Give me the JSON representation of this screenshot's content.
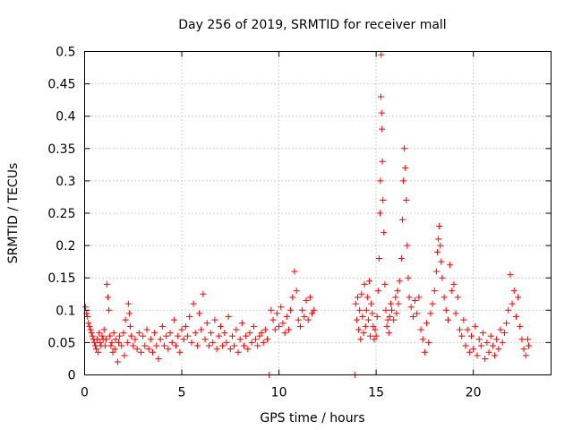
{
  "chart_data": {
    "type": "scatter",
    "title": "Day 256 of 2019, SRMTID for receiver mall",
    "xlabel": "GPS time / hours",
    "ylabel": "SRMTID / TECUs",
    "xlim": [
      0,
      24
    ],
    "ylim": [
      0,
      0.5
    ],
    "x_ticks": [
      "0",
      "5",
      "10",
      "15",
      "20"
    ],
    "y_ticks": [
      "0",
      "0.05",
      "0.1",
      "0.15",
      "0.2",
      "0.25",
      "0.3",
      "0.35",
      "0.4",
      "0.45",
      "0.5"
    ],
    "grid": true,
    "marker": "+",
    "color": "#ff0000",
    "series": [
      {
        "name": "SRMTID",
        "points": [
          [
            0.05,
            0.105
          ],
          [
            0.1,
            0.095
          ],
          [
            0.15,
            0.09
          ],
          [
            0.2,
            0.08
          ],
          [
            0.25,
            0.075
          ],
          [
            0.3,
            0.07
          ],
          [
            0.35,
            0.065
          ],
          [
            0.4,
            0.06
          ],
          [
            0.45,
            0.055
          ],
          [
            0.5,
            0.05
          ],
          [
            0.55,
            0.045
          ],
          [
            0.6,
            0.04
          ],
          [
            0.65,
            0.055
          ],
          [
            0.7,
            0.035
          ],
          [
            0.75,
            0.065
          ],
          [
            0.8,
            0.05
          ],
          [
            0.85,
            0.045
          ],
          [
            0.9,
            0.06
          ],
          [
            0.95,
            0.055
          ],
          [
            1.0,
            0.07
          ],
          [
            1.05,
            0.045
          ],
          [
            1.1,
            0.055
          ],
          [
            1.15,
            0.14
          ],
          [
            1.2,
            0.12
          ],
          [
            1.25,
            0.1
          ],
          [
            1.3,
            0.06
          ],
          [
            1.35,
            0.045
          ],
          [
            1.4,
            0.05
          ],
          [
            1.45,
            0.035
          ],
          [
            1.5,
            0.065
          ],
          [
            1.55,
            0.04
          ],
          [
            1.6,
            0.055
          ],
          [
            1.7,
            0.02
          ],
          [
            1.75,
            0.05
          ],
          [
            1.8,
            0.06
          ],
          [
            1.9,
            0.045
          ],
          [
            2.0,
            0.065
          ],
          [
            2.05,
            0.03
          ],
          [
            2.1,
            0.085
          ],
          [
            2.2,
            0.05
          ],
          [
            2.25,
            0.11
          ],
          [
            2.3,
            0.095
          ],
          [
            2.35,
            0.075
          ],
          [
            2.4,
            0.06
          ],
          [
            2.5,
            0.045
          ],
          [
            2.6,
            0.055
          ],
          [
            2.7,
            0.04
          ],
          [
            2.8,
            0.065
          ],
          [
            2.9,
            0.035
          ],
          [
            3.0,
            0.06
          ],
          [
            3.1,
            0.045
          ],
          [
            3.2,
            0.07
          ],
          [
            3.3,
            0.04
          ],
          [
            3.4,
            0.055
          ],
          [
            3.5,
            0.035
          ],
          [
            3.6,
            0.065
          ],
          [
            3.7,
            0.045
          ],
          [
            3.8,
            0.025
          ],
          [
            3.9,
            0.055
          ],
          [
            4.0,
            0.075
          ],
          [
            4.1,
            0.045
          ],
          [
            4.2,
            0.06
          ],
          [
            4.3,
            0.04
          ],
          [
            4.4,
            0.065
          ],
          [
            4.5,
            0.05
          ],
          [
            4.6,
            0.085
          ],
          [
            4.7,
            0.045
          ],
          [
            4.8,
            0.06
          ],
          [
            4.9,
            0.035
          ],
          [
            5.0,
            0.07
          ],
          [
            5.1,
            0.055
          ],
          [
            5.2,
            0.075
          ],
          [
            5.3,
            0.06
          ],
          [
            5.4,
            0.09
          ],
          [
            5.5,
            0.05
          ],
          [
            5.6,
            0.11
          ],
          [
            5.7,
            0.065
          ],
          [
            5.8,
            0.045
          ],
          [
            5.9,
            0.095
          ],
          [
            6.0,
            0.07
          ],
          [
            6.1,
            0.125
          ],
          [
            6.2,
            0.055
          ],
          [
            6.3,
            0.08
          ],
          [
            6.4,
            0.045
          ],
          [
            6.5,
            0.065
          ],
          [
            6.6,
            0.05
          ],
          [
            6.7,
            0.085
          ],
          [
            6.8,
            0.04
          ],
          [
            6.9,
            0.06
          ],
          [
            7.0,
            0.075
          ],
          [
            7.1,
            0.045
          ],
          [
            7.2,
            0.065
          ],
          [
            7.3,
            0.05
          ],
          [
            7.4,
            0.09
          ],
          [
            7.5,
            0.04
          ],
          [
            7.6,
            0.06
          ],
          [
            7.7,
            0.045
          ],
          [
            7.8,
            0.07
          ],
          [
            7.9,
            0.035
          ],
          [
            8.0,
            0.055
          ],
          [
            8.1,
            0.08
          ],
          [
            8.2,
            0.045
          ],
          [
            8.3,
            0.06
          ],
          [
            8.4,
            0.04
          ],
          [
            8.5,
            0.065
          ],
          [
            8.6,
            0.05
          ],
          [
            8.7,
            0.075
          ],
          [
            8.8,
            0.055
          ],
          [
            8.9,
            0.045
          ],
          [
            9.0,
            0.06
          ],
          [
            9.1,
            0.065
          ],
          [
            9.2,
            0.05
          ],
          [
            9.3,
            0.07
          ],
          [
            9.4,
            0.055
          ],
          [
            9.5,
            0.0
          ],
          [
            9.6,
            0.1
          ],
          [
            9.7,
            0.085
          ],
          [
            9.8,
            0.07
          ],
          [
            9.9,
            0.095
          ],
          [
            10.0,
            0.075
          ],
          [
            10.1,
            0.105
          ],
          [
            10.2,
            0.08
          ],
          [
            10.3,
            0.065
          ],
          [
            10.4,
            0.09
          ],
          [
            10.5,
            0.07
          ],
          [
            10.6,
            0.1
          ],
          [
            10.7,
            0.12
          ],
          [
            10.8,
            0.16
          ],
          [
            10.9,
            0.13
          ],
          [
            11.0,
            0.085
          ],
          [
            11.1,
            0.075
          ],
          [
            11.2,
            0.1
          ],
          [
            11.3,
            0.09
          ],
          [
            11.4,
            0.115
          ],
          [
            11.5,
            0.085
          ],
          [
            11.6,
            0.12
          ],
          [
            11.7,
            0.095
          ],
          [
            11.8,
            0.1
          ],
          [
            13.9,
            0.0
          ],
          [
            13.95,
            0.11
          ],
          [
            14.0,
            0.085
          ],
          [
            14.05,
            0.12
          ],
          [
            14.1,
            0.07
          ],
          [
            14.15,
            0.1
          ],
          [
            14.2,
            0.055
          ],
          [
            14.25,
            0.125
          ],
          [
            14.3,
            0.09
          ],
          [
            14.35,
            0.065
          ],
          [
            14.4,
            0.14
          ],
          [
            14.45,
            0.075
          ],
          [
            14.5,
            0.1
          ],
          [
            14.55,
            0.12
          ],
          [
            14.6,
            0.085
          ],
          [
            14.65,
            0.145
          ],
          [
            14.7,
            0.06
          ],
          [
            14.75,
            0.11
          ],
          [
            14.8,
            0.095
          ],
          [
            14.85,
            0.075
          ],
          [
            14.9,
            0.055
          ],
          [
            14.95,
            0.07
          ],
          [
            15.0,
            0.06
          ],
          [
            15.05,
            0.09
          ],
          [
            15.1,
            0.13
          ],
          [
            15.15,
            0.18
          ],
          [
            15.2,
            0.25
          ],
          [
            15.22,
            0.3
          ],
          [
            15.24,
            0.43
          ],
          [
            15.26,
            0.495
          ],
          [
            15.28,
            0.405
          ],
          [
            15.3,
            0.38
          ],
          [
            15.32,
            0.33
          ],
          [
            15.35,
            0.27
          ],
          [
            15.4,
            0.22
          ],
          [
            15.45,
            0.14
          ],
          [
            15.5,
            0.1
          ],
          [
            15.55,
            0.075
          ],
          [
            15.6,
            0.085
          ],
          [
            15.65,
            0.065
          ],
          [
            15.7,
            0.09
          ],
          [
            15.75,
            0.11
          ],
          [
            15.8,
            0.1
          ],
          [
            15.9,
            0.085
          ],
          [
            16.0,
            0.12
          ],
          [
            16.05,
            0.095
          ],
          [
            16.1,
            0.13
          ],
          [
            16.15,
            0.11
          ],
          [
            16.2,
            0.145
          ],
          [
            16.3,
            0.18
          ],
          [
            16.35,
            0.24
          ],
          [
            16.4,
            0.3
          ],
          [
            16.45,
            0.35
          ],
          [
            16.5,
            0.32
          ],
          [
            16.55,
            0.27
          ],
          [
            16.6,
            0.2
          ],
          [
            16.65,
            0.15
          ],
          [
            16.7,
            0.12
          ],
          [
            16.8,
            0.105
          ],
          [
            16.9,
            0.09
          ],
          [
            17.0,
            0.115
          ],
          [
            17.1,
            0.095
          ],
          [
            17.2,
            0.12
          ],
          [
            17.3,
            0.07
          ],
          [
            17.4,
            0.055
          ],
          [
            17.5,
            0.035
          ],
          [
            17.6,
            0.08
          ],
          [
            17.7,
            0.05
          ],
          [
            17.8,
            0.095
          ],
          [
            17.9,
            0.11
          ],
          [
            18.0,
            0.13
          ],
          [
            18.1,
            0.16
          ],
          [
            18.15,
            0.19
          ],
          [
            18.2,
            0.21
          ],
          [
            18.25,
            0.23
          ],
          [
            18.3,
            0.2
          ],
          [
            18.35,
            0.175
          ],
          [
            18.4,
            0.15
          ],
          [
            18.5,
            0.12
          ],
          [
            18.6,
            0.1
          ],
          [
            18.7,
            0.085
          ],
          [
            18.8,
            0.17
          ],
          [
            18.9,
            0.13
          ],
          [
            19.0,
            0.14
          ],
          [
            19.1,
            0.095
          ],
          [
            19.2,
            0.12
          ],
          [
            19.3,
            0.07
          ],
          [
            19.4,
            0.06
          ],
          [
            19.5,
            0.085
          ],
          [
            19.6,
            0.045
          ],
          [
            19.7,
            0.07
          ],
          [
            19.8,
            0.035
          ],
          [
            19.9,
            0.06
          ],
          [
            20.0,
            0.04
          ],
          [
            20.1,
            0.075
          ],
          [
            20.2,
            0.03
          ],
          [
            20.3,
            0.055
          ],
          [
            20.4,
            0.045
          ],
          [
            20.5,
            0.065
          ],
          [
            20.6,
            0.025
          ],
          [
            20.7,
            0.05
          ],
          [
            20.8,
            0.035
          ],
          [
            20.9,
            0.06
          ],
          [
            21.0,
            0.045
          ],
          [
            21.1,
            0.03
          ],
          [
            21.2,
            0.055
          ],
          [
            21.3,
            0.04
          ],
          [
            21.4,
            0.07
          ],
          [
            21.5,
            0.05
          ],
          [
            21.6,
            0.065
          ],
          [
            21.7,
            0.08
          ],
          [
            21.8,
            0.1
          ],
          [
            21.9,
            0.155
          ],
          [
            22.0,
            0.11
          ],
          [
            22.1,
            0.13
          ],
          [
            22.2,
            0.09
          ],
          [
            22.3,
            0.12
          ],
          [
            22.4,
            0.075
          ],
          [
            22.5,
            0.055
          ],
          [
            22.6,
            0.04
          ],
          [
            22.7,
            0.03
          ],
          [
            22.8,
            0.055
          ],
          [
            22.85,
            0.045
          ]
        ]
      }
    ]
  }
}
